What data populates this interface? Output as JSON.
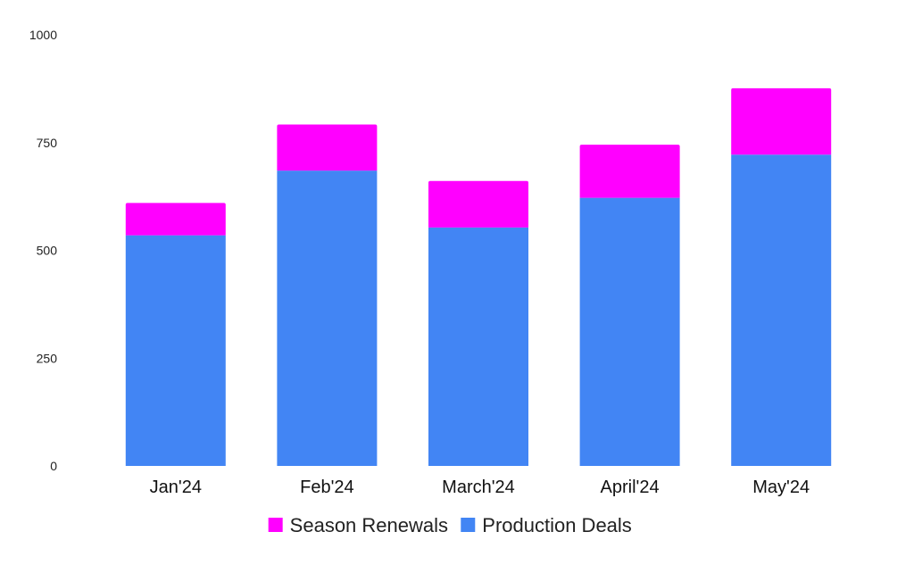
{
  "chart_data": {
    "type": "bar",
    "stacked": true,
    "title": "",
    "xlabel": "",
    "ylabel": "",
    "categories": [
      "Jan'24",
      "Feb'24",
      "March'24",
      "April'24",
      "May'24"
    ],
    "series": [
      {
        "name": "Production Deals",
        "color": "#4285f4",
        "values": [
          535,
          685,
          553,
          622,
          722
        ]
      },
      {
        "name": "Season Renewals",
        "color": "#ff00ff",
        "values": [
          75,
          107,
          108,
          123,
          154
        ]
      }
    ],
    "ylim": [
      0,
      1000
    ],
    "yticks": [
      0,
      250,
      500,
      750,
      1000
    ],
    "grid": false,
    "legend": {
      "position": "bottom",
      "order": [
        "Season Renewals",
        "Production Deals"
      ]
    }
  }
}
